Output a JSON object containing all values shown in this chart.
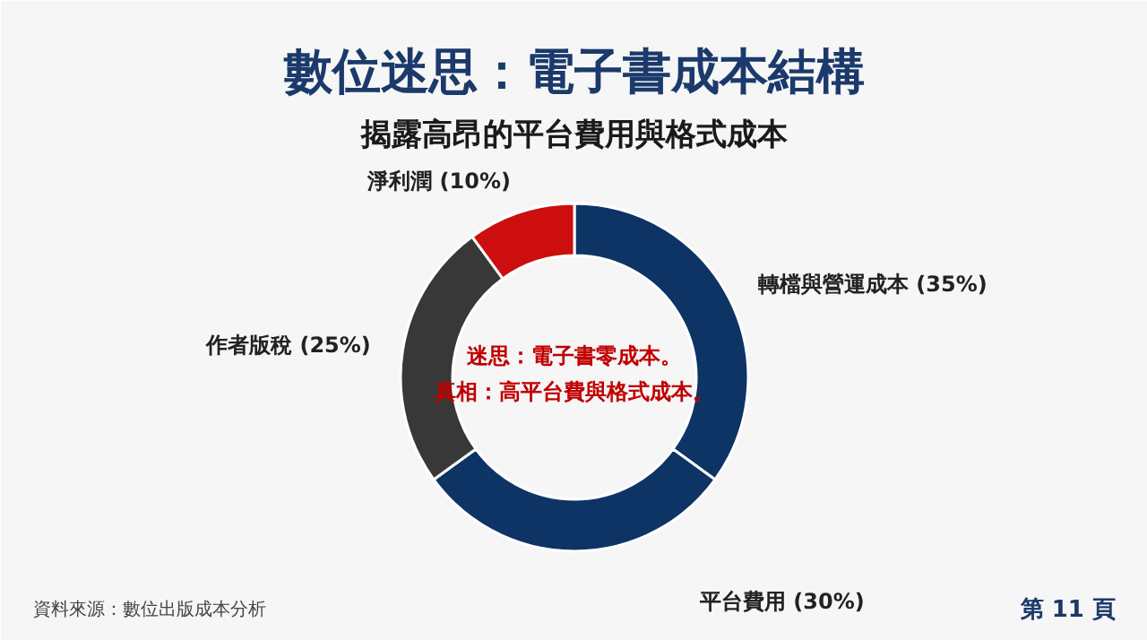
{
  "chart_data": {
    "type": "donut",
    "title": "數位迷思：電子書成本結構",
    "subtitle": "揭露高昂的平台費用與格式成本",
    "categories": [
      "轉檔與營運成本 (35%)",
      "平台費用 (30%)",
      "作者版稅 (25%)",
      "淨利潤 (10%)"
    ],
    "values": [
      35,
      30,
      25,
      10
    ],
    "colors": [
      "#0e3466",
      "#0e3466",
      "#383838",
      "#cc0e0e"
    ],
    "annotations": [
      "迷思：電子書零成本。",
      "真相：高平台費與格式成本。",
      "資料來源：數位出版成本分析",
      "第 11 頁"
    ]
  }
}
